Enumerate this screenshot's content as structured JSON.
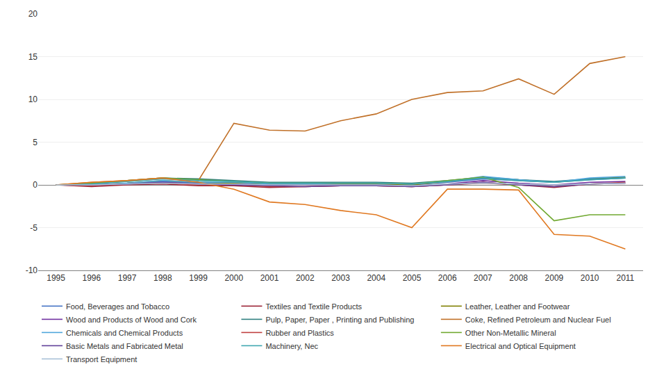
{
  "chart_data": {
    "type": "line",
    "x": [
      1995,
      1996,
      1997,
      1998,
      1999,
      2000,
      2001,
      2002,
      2003,
      2004,
      2005,
      2006,
      2007,
      2008,
      2009,
      2010,
      2011
    ],
    "xlim": [
      1994.5,
      2011.5
    ],
    "xticks": [
      1995,
      1996,
      1997,
      1998,
      1999,
      2000,
      2001,
      2002,
      2003,
      2004,
      2005,
      2006,
      2007,
      2008,
      2009,
      2010,
      2011
    ],
    "ylim": [
      -10,
      20
    ],
    "yticks": [
      -10,
      -5,
      0,
      5,
      10,
      15,
      20
    ],
    "grid": true,
    "legend": "bottom",
    "series": [
      {
        "name": "Food, Beverages and Tobacco",
        "color": "#4472C4",
        "values": [
          0,
          -0.1,
          0.2,
          0.4,
          0.2,
          0.2,
          0.1,
          0.1,
          0.1,
          0.1,
          0.0,
          0.3,
          0.7,
          0.5,
          0.3,
          0.6,
          0.8
        ]
      },
      {
        "name": "Textiles and Textile Products",
        "color": "#9B2335",
        "values": [
          0,
          -0.2,
          0.0,
          0.1,
          -0.1,
          -0.1,
          -0.3,
          -0.2,
          -0.1,
          -0.1,
          -0.2,
          0.0,
          0.2,
          0.0,
          -0.3,
          0.1,
          0.2
        ]
      },
      {
        "name": "Leather, Leather and Footwear",
        "color": "#7F7F00",
        "values": [
          0,
          0.0,
          0.2,
          0.5,
          0.3,
          0.2,
          0.1,
          0.1,
          0.1,
          0.1,
          0.0,
          0.4,
          0.9,
          0.6,
          0.3,
          0.7,
          0.9
        ]
      },
      {
        "name": "Wood and Products of Wood and Cork",
        "color": "#7030A0",
        "values": [
          0,
          0.0,
          0.1,
          0.3,
          0.1,
          0.1,
          0.0,
          0.0,
          0.0,
          0.0,
          -0.1,
          0.1,
          0.5,
          0.2,
          0.0,
          0.3,
          0.4
        ]
      },
      {
        "name": "Pulp, Paper, Paper , Printing and Publishing",
        "color": "#2F7F7F",
        "values": [
          0,
          0.1,
          0.5,
          0.8,
          0.7,
          0.5,
          0.3,
          0.3,
          0.3,
          0.3,
          0.2,
          0.5,
          0.9,
          0.6,
          0.4,
          0.7,
          0.8
        ]
      },
      {
        "name": "Coke, Refined Petroleum and Nuclear Fuel",
        "color": "#C07028",
        "values": [
          0,
          0.3,
          0.5,
          0.8,
          0.5,
          7.2,
          6.4,
          6.3,
          7.5,
          8.3,
          10.0,
          10.8,
          11.0,
          12.4,
          10.6,
          14.2,
          15.0
        ]
      },
      {
        "name": "Chemicals and Chemical Products",
        "color": "#4EA6DC",
        "values": [
          0,
          0.0,
          0.2,
          0.5,
          0.3,
          0.3,
          0.1,
          0.1,
          0.2,
          0.2,
          0.1,
          0.4,
          1.0,
          0.6,
          0.3,
          0.8,
          1.0
        ]
      },
      {
        "name": "Rubber and Plastics",
        "color": "#C04040",
        "values": [
          0,
          -0.1,
          0.1,
          0.2,
          0.0,
          0.0,
          -0.2,
          -0.2,
          -0.1,
          -0.1,
          -0.2,
          0.0,
          0.3,
          0.0,
          -0.2,
          0.1,
          0.3
        ]
      },
      {
        "name": "Other Non-Metallic Mineral",
        "color": "#70A830",
        "values": [
          0,
          0.2,
          0.5,
          0.8,
          0.6,
          0.4,
          0.2,
          0.2,
          0.2,
          0.2,
          0.1,
          0.5,
          0.9,
          -0.3,
          -4.2,
          -3.5,
          -3.5
        ]
      },
      {
        "name": "Basic Metals and Fabricated Metal",
        "color": "#60409A",
        "values": [
          0,
          0.0,
          0.1,
          0.3,
          0.1,
          0.0,
          -0.1,
          -0.2,
          -0.1,
          -0.1,
          -0.2,
          0.0,
          0.3,
          0.0,
          -0.2,
          0.1,
          0.2
        ]
      },
      {
        "name": "Machinery, Nec",
        "color": "#40A8B0",
        "values": [
          0,
          0.1,
          0.4,
          0.7,
          0.5,
          0.4,
          0.2,
          0.2,
          0.2,
          0.2,
          0.1,
          0.4,
          0.8,
          0.5,
          0.3,
          0.6,
          0.8
        ]
      },
      {
        "name": "Electrical and Optical Equipment",
        "color": "#E07820",
        "values": [
          0,
          0.3,
          0.5,
          0.8,
          0.3,
          -0.5,
          -2.0,
          -2.3,
          -3.0,
          -3.5,
          -5.0,
          -0.5,
          -0.5,
          -0.6,
          -5.8,
          -6.0,
          -7.5
        ]
      },
      {
        "name": "Transport Equipment",
        "color": "#A8C0D8",
        "values": [
          0,
          0.0,
          0.1,
          0.2,
          0.1,
          0.1,
          0.0,
          0.0,
          0.0,
          0.0,
          -0.1,
          0.1,
          0.2,
          0.1,
          0.0,
          0.1,
          0.2
        ]
      }
    ]
  }
}
